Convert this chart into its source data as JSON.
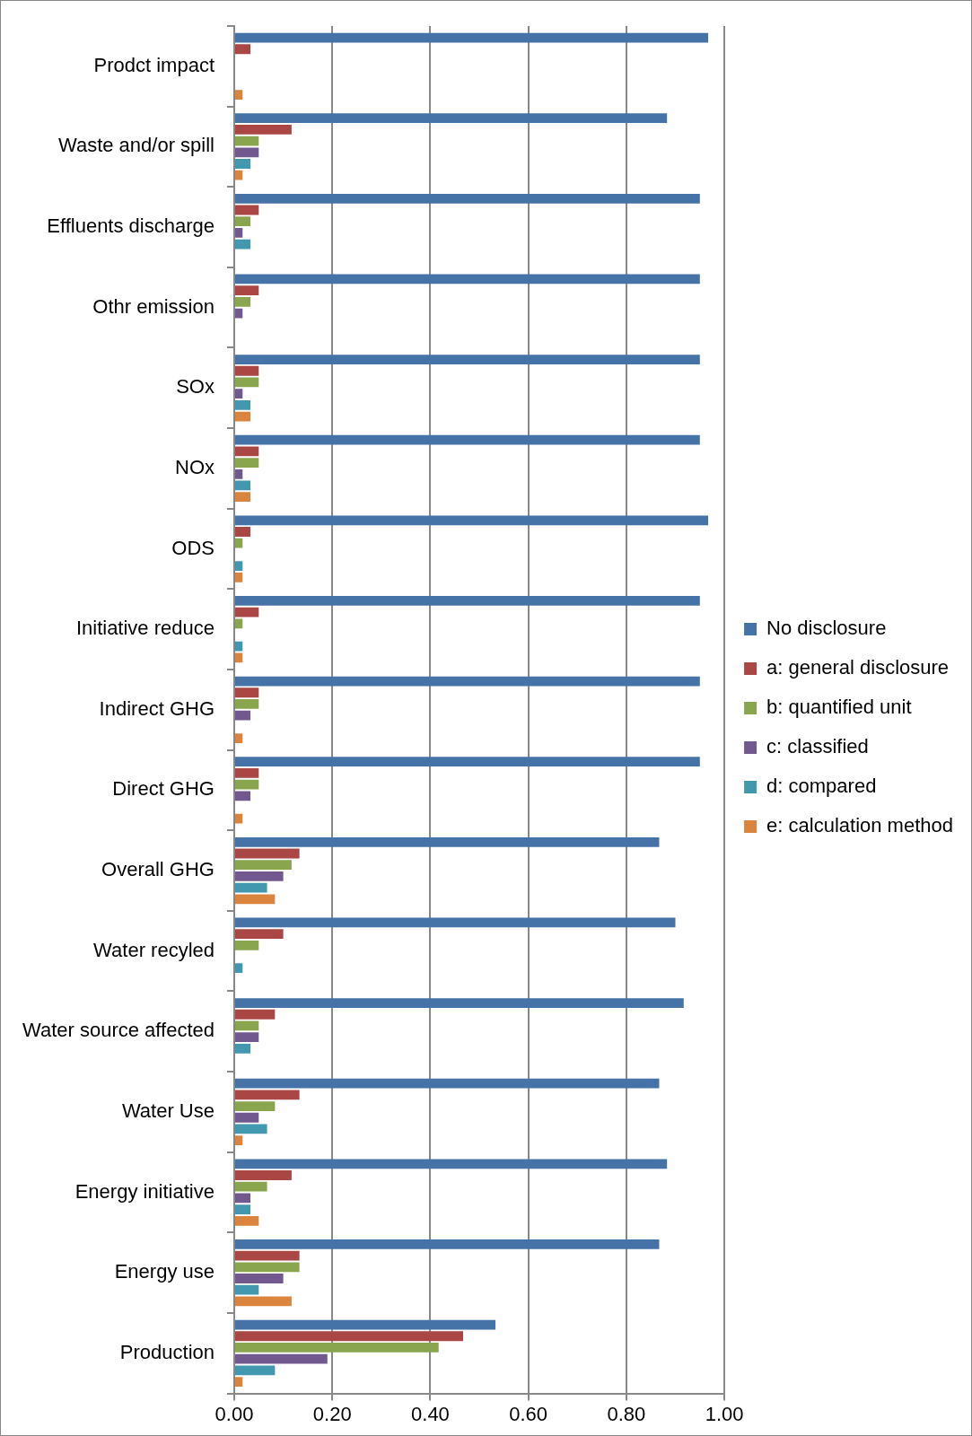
{
  "chart_data": {
    "type": "bar",
    "orientation": "horizontal",
    "categories": [
      "Prodct impact",
      "Waste and/or spill",
      "Effluents discharge",
      "Othr emission",
      "SOx",
      "NOx",
      "ODS",
      "Initiative reduce",
      "Indirect GHG",
      "Direct GHG",
      "Overall GHG",
      "Water recyled",
      "Water source affected",
      "Water Use",
      "Energy initiative",
      "Energy use",
      "Production"
    ],
    "series": [
      {
        "name": "No disclosure",
        "color": "#4573a7",
        "values": [
          0.967,
          0.883,
          0.95,
          0.95,
          0.95,
          0.95,
          0.967,
          0.95,
          0.95,
          0.95,
          0.867,
          0.9,
          0.917,
          0.867,
          0.883,
          0.867,
          0.533
        ]
      },
      {
        "name": "a: general disclosure",
        "color": "#aa4644",
        "values": [
          0.033,
          0.117,
          0.05,
          0.05,
          0.05,
          0.05,
          0.033,
          0.05,
          0.05,
          0.05,
          0.133,
          0.1,
          0.083,
          0.133,
          0.117,
          0.133,
          0.467
        ]
      },
      {
        "name": "b: quantified unit",
        "color": "#89a54e",
        "values": [
          0,
          0.05,
          0.033,
          0.033,
          0.05,
          0.05,
          0.017,
          0.017,
          0.05,
          0.05,
          0.117,
          0.05,
          0.05,
          0.083,
          0.067,
          0.133,
          0.417
        ]
      },
      {
        "name": "c: classified",
        "color": "#71588f",
        "values": [
          0,
          0.05,
          0.017,
          0.017,
          0.017,
          0.017,
          0,
          0,
          0.033,
          0.033,
          0.1,
          0,
          0.05,
          0.05,
          0.033,
          0.1,
          0.19
        ]
      },
      {
        "name": "d: compared",
        "color": "#4198af",
        "values": [
          0,
          0.033,
          0.033,
          0,
          0.033,
          0.033,
          0.017,
          0.017,
          0,
          0,
          0.067,
          0.017,
          0.033,
          0.067,
          0.033,
          0.05,
          0.083
        ]
      },
      {
        "name": "e: calculation method",
        "color": "#db843d",
        "values": [
          0.017,
          0.017,
          0,
          0,
          0.033,
          0.033,
          0.017,
          0.017,
          0.017,
          0.017,
          0.083,
          0,
          0,
          0.017,
          0.05,
          0.117,
          0.017
        ]
      }
    ],
    "xlim": [
      0,
      1
    ],
    "xticks": [
      {
        "value": 0,
        "label": "0.00"
      },
      {
        "value": 0.2,
        "label": "0.20"
      },
      {
        "value": 0.4,
        "label": "0.40"
      },
      {
        "value": 0.6,
        "label": "0.60"
      },
      {
        "value": 0.8,
        "label": "0.80"
      },
      {
        "value": 1,
        "label": "1.00"
      }
    ],
    "grid": "x",
    "legend": "right"
  }
}
